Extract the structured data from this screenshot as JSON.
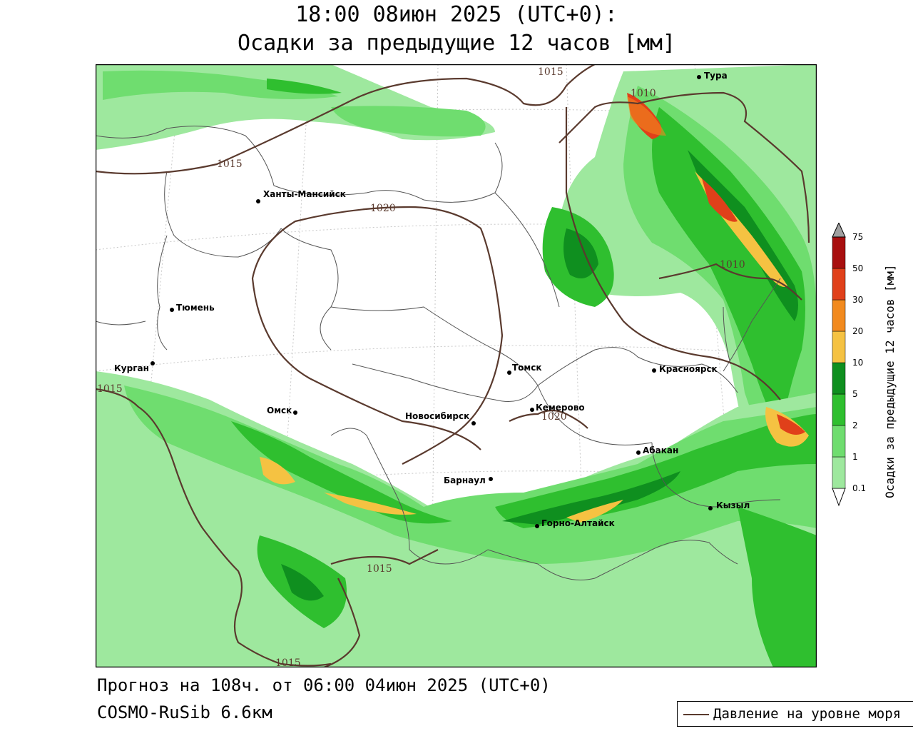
{
  "title": {
    "line1": "18:00 08июн 2025 (UTC+0):",
    "line2": "Осадки за предыдущие 12 часов [мм]"
  },
  "footer": {
    "forecast": "Прогноз на 108ч. от 06:00 04июн 2025 (UTC+0)",
    "model": "COSMO-RuSib 6.6км"
  },
  "legend": {
    "pressure_label": "Давление на уровне моря",
    "pressure_color": "#5a3a2e"
  },
  "colorbar": {
    "title": "Осадки за предыдущие 12 часов [мм]",
    "ticks": [
      "0.1",
      "1",
      "2",
      "5",
      "10",
      "20",
      "30",
      "50",
      "75"
    ],
    "colors": [
      "#9ee89e",
      "#6fdd6f",
      "#2fbf2f",
      "#0f8f1f",
      "#f5c242",
      "#f28a1e",
      "#e0401a",
      "#a80f0f",
      "#a0a0a0"
    ]
  },
  "cities": [
    {
      "name": "Тура"
    },
    {
      "name": "Ханты-Мансийск"
    },
    {
      "name": "Тюмень"
    },
    {
      "name": "Курган"
    },
    {
      "name": "Омск"
    },
    {
      "name": "Томск"
    },
    {
      "name": "Красноярск"
    },
    {
      "name": "Кемерово"
    },
    {
      "name": "Новосибирск"
    },
    {
      "name": "Абакан"
    },
    {
      "name": "Барнаул"
    },
    {
      "name": "Кызыл"
    },
    {
      "name": "Горно-Алтайск"
    }
  ],
  "isobars": [
    {
      "label": "1015"
    },
    {
      "label": "1010"
    },
    {
      "label": "1015"
    },
    {
      "label": "1020"
    },
    {
      "label": "1010"
    },
    {
      "label": "1015"
    },
    {
      "label": "1020"
    },
    {
      "label": "1015"
    },
    {
      "label": "1015"
    }
  ]
}
